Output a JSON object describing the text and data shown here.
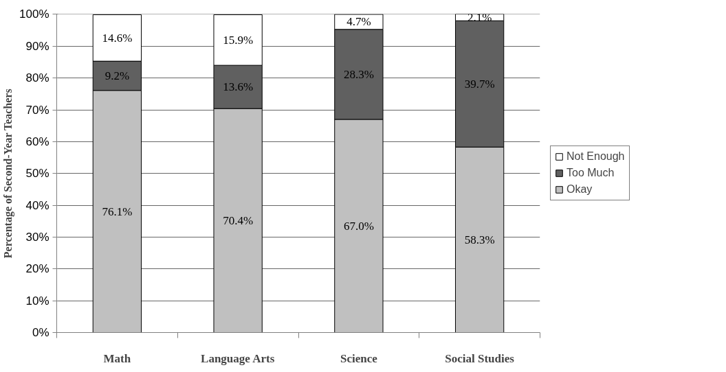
{
  "chart_data": {
    "type": "bar",
    "stacked": true,
    "ylabel": "Percentage of Second-Year Teachers",
    "categories": [
      "Math",
      "Language Arts",
      "Science",
      "Social Studies"
    ],
    "series": [
      {
        "name": "Okay",
        "color": "#c0c0c0",
        "values": [
          76.1,
          70.4,
          67.0,
          58.3
        ],
        "value_labels": [
          "76.1%",
          "70.4%",
          "67.0%",
          "58.3%"
        ]
      },
      {
        "name": "Too Much",
        "color": "#606060",
        "values": [
          9.2,
          13.6,
          28.3,
          39.7
        ],
        "value_labels": [
          "9.2%",
          "13.6%",
          "28.3%",
          "39.7%"
        ]
      },
      {
        "name": "Not Enough",
        "color": "#ffffff",
        "values": [
          14.6,
          15.9,
          4.7,
          2.1
        ],
        "value_labels": [
          "14.6%",
          "15.9%",
          "4.7%",
          "2.1%"
        ]
      }
    ],
    "ylim": [
      0,
      100.1
    ],
    "yticks": [
      {
        "value": 0,
        "label": "0%"
      },
      {
        "value": 10,
        "label": "10%"
      },
      {
        "value": 20,
        "label": "20%"
      },
      {
        "value": 30,
        "label": "30%"
      },
      {
        "value": 40,
        "label": "40%"
      },
      {
        "value": 50,
        "label": "50%"
      },
      {
        "value": 60,
        "label": "60%"
      },
      {
        "value": 70,
        "label": "70%"
      },
      {
        "value": 80,
        "label": "80%"
      },
      {
        "value": 90,
        "label": "90%"
      },
      {
        "value": 100,
        "label": "100%"
      }
    ],
    "grid": "y",
    "legend": "right"
  }
}
